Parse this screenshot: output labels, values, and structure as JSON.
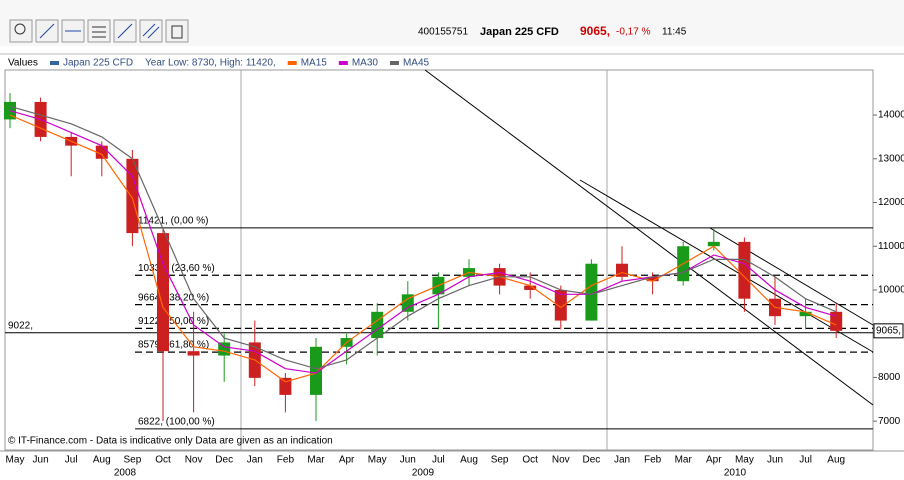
{
  "header": {
    "id": "400155751",
    "instrument": "Japan 225 CFD",
    "price": "9065,",
    "change": "-0,17 %",
    "time": "11:45"
  },
  "chart_data": {
    "type": "candlestick",
    "legend_title": "Values",
    "legend_note": "Year Low: 8730, High: 11420,",
    "footer": "© IT-Finance.com - Data is indicative only Data are given as an indication",
    "categories": [
      "May",
      "Jun",
      "Jul",
      "Aug",
      "Sep",
      "Oct",
      "Nov",
      "Dec",
      "Jan",
      "Feb",
      "Mar",
      "Apr",
      "May",
      "Jun",
      "Jul",
      "Aug",
      "Sep",
      "Oct",
      "Nov",
      "Dec",
      "Jan",
      "Feb",
      "Mar",
      "Apr",
      "May",
      "Jun",
      "Jul",
      "Aug"
    ],
    "years": [
      "2008",
      "2009",
      "2010"
    ],
    "series": [
      {
        "name": "Japan 225 CFD",
        "color": "#336699",
        "up_color": "#1a9a1a",
        "down_color": "#cc1f1f",
        "open": [
          13900,
          14300,
          13500,
          13300,
          13000,
          11300,
          8600,
          8500,
          8800,
          7990,
          7600,
          8700,
          8900,
          9500,
          9900,
          10300,
          10500,
          10100,
          10000,
          9300,
          10600,
          10300,
          10200,
          11000,
          11100,
          9800,
          9400,
          9500
        ],
        "high": [
          14500,
          14400,
          13600,
          13400,
          13200,
          11400,
          9500,
          9000,
          9300,
          8100,
          8900,
          9000,
          9700,
          10200,
          10400,
          10700,
          10600,
          10400,
          10100,
          10700,
          11000,
          10400,
          11100,
          11400,
          11200,
          10300,
          9800,
          9700
        ],
        "low": [
          13700,
          13400,
          12600,
          12600,
          11000,
          7000,
          7200,
          7900,
          7800,
          7200,
          7000,
          8300,
          8500,
          9300,
          9100,
          10100,
          9900,
          9800,
          9100,
          9300,
          10200,
          9900,
          10100,
          10900,
          9500,
          9200,
          9100,
          8900
        ],
        "close": [
          14300,
          13500,
          13300,
          13000,
          11300,
          8600,
          8500,
          8800,
          7990,
          7600,
          8700,
          8900,
          9500,
          9900,
          10300,
          10500,
          10100,
          10000,
          9300,
          10600,
          10300,
          10200,
          11000,
          11100,
          9800,
          9400,
          9500,
          9065
        ]
      },
      {
        "name": "MA15",
        "color": "#ff6600",
        "values": [
          14000,
          13700,
          13400,
          13100,
          12100,
          9600,
          8700,
          8600,
          8400,
          7900,
          8100,
          8800,
          9300,
          9800,
          10100,
          10400,
          10300,
          10100,
          9600,
          10100,
          10400,
          10200,
          10600,
          11000,
          10300,
          9600,
          9500,
          9200
        ]
      },
      {
        "name": "MA30",
        "color": "#cc00cc",
        "values": [
          14100,
          13900,
          13600,
          13300,
          12600,
          10600,
          9200,
          8700,
          8600,
          8200,
          8100,
          8600,
          9100,
          9600,
          9900,
          10300,
          10400,
          10200,
          9900,
          9900,
          10200,
          10300,
          10400,
          10800,
          10600,
          10000,
          9600,
          9400
        ]
      },
      {
        "name": "MA45",
        "color": "#666666",
        "values": [
          14200,
          14000,
          13800,
          13500,
          13000,
          11400,
          9800,
          8900,
          8700,
          8400,
          8200,
          8400,
          8900,
          9400,
          9800,
          10100,
          10300,
          10300,
          10000,
          9900,
          10100,
          10300,
          10400,
          10700,
          10700,
          10300,
          9800,
          9500
        ]
      }
    ],
    "levels": [
      {
        "value": 11421,
        "label": "11421, (0,00 %)",
        "style": "solid"
      },
      {
        "value": 10336,
        "label": "10336, (23,60 %)",
        "style": "dashed"
      },
      {
        "value": 9664,
        "label": "9664, (38,20 %)",
        "style": "dashed"
      },
      {
        "value": 9122,
        "label": "9122, (50,00 %)",
        "style": "dashed"
      },
      {
        "value": 8579,
        "label": "8579, (61,80 %)",
        "style": "dashed"
      },
      {
        "value": 6822,
        "label": "6822, (100,00 %)",
        "style": "solid"
      }
    ],
    "reference_line": {
      "value": 9022,
      "label": "9022,"
    },
    "last": {
      "value": 9065,
      "label": "9065,"
    },
    "ylim": [
      6340,
      15030
    ],
    "yticks": [
      7000,
      8000,
      9000,
      10000,
      11000,
      12000,
      13000,
      14000
    ],
    "grid": false
  }
}
